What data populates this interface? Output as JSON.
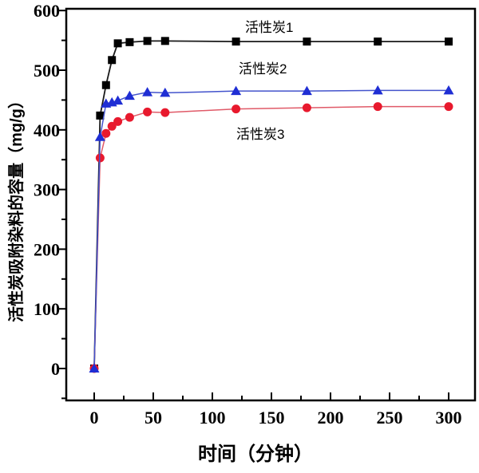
{
  "chart_data": {
    "type": "line",
    "title": "",
    "xlabel": "时间（分钟）",
    "ylabel": "活性炭吸附染料的容量（mg/g）",
    "xlim": [
      -25,
      323
    ],
    "ylim": [
      -55,
      604
    ],
    "grid": false,
    "legend_position": "inline-annotations",
    "x_major_ticks": [
      0,
      50,
      100,
      150,
      200,
      250,
      300
    ],
    "x_minor_ticks": [
      25,
      75,
      125,
      175,
      225,
      275
    ],
    "y_major_ticks": [
      0,
      100,
      200,
      300,
      400,
      500,
      600
    ],
    "y_minor_ticks": [
      -50,
      50,
      150,
      250,
      350,
      450,
      550
    ],
    "x": [
      0,
      5,
      10,
      15,
      20,
      30,
      45,
      60,
      120,
      180,
      240,
      300
    ],
    "series": [
      {
        "name": "活性炭1",
        "marker": "square",
        "marker_color": "#000000",
        "line_color": "#1a1a1a",
        "values": [
          0,
          424,
          475,
          517,
          545,
          547,
          549,
          549,
          548,
          548,
          548,
          548
        ]
      },
      {
        "name": "活性炭2",
        "marker": "triangle",
        "marker_color": "#1f2ed4",
        "line_color": "#4353cc",
        "values": [
          0,
          388,
          444,
          446,
          449,
          457,
          463,
          462,
          465,
          465,
          466,
          466
        ]
      },
      {
        "name": "活性炭3",
        "marker": "circle",
        "marker_color": "#e8192d",
        "line_color": "#e05a68",
        "values": [
          0,
          353,
          394,
          406,
          414,
          421,
          430,
          429,
          435,
          437,
          439,
          439
        ]
      }
    ],
    "axis_color": "#000000",
    "background_color": "#ffffff"
  }
}
